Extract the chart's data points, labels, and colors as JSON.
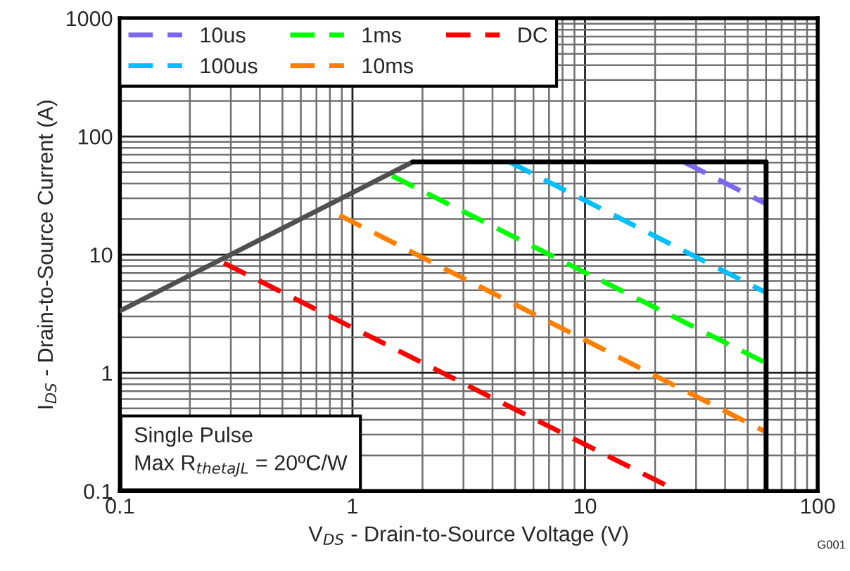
{
  "chart_data": {
    "type": "line",
    "xlabel": "V$_{DS}$ - Drain-to-Source Voltage (V)",
    "ylabel": "I$_{DS}$ - Drain-to-Source Current (A)",
    "log": "xy",
    "xlim": [
      0.1,
      100
    ],
    "ylim": [
      0.1,
      1000
    ],
    "xticks": [
      0.1,
      1,
      10,
      100
    ],
    "yticks": [
      0.1,
      1,
      10,
      100,
      1000
    ],
    "grid": true,
    "legend": "top left",
    "series": [
      {
        "name": "10us",
        "color": "#7b68ee",
        "line_style": "dashed",
        "x": [
          26.5,
          60
        ],
        "values": [
          61,
          26.9
        ]
      },
      {
        "name": "100us",
        "color": "#00bfff",
        "line_style": "dashed",
        "x": [
          4.72,
          60
        ],
        "values": [
          61,
          4.77
        ]
      },
      {
        "name": "1ms",
        "color": "#00ff00",
        "line_style": "dashed",
        "x": [
          1.48,
          60
        ],
        "values": [
          46.4,
          1.21
        ]
      },
      {
        "name": "10ms",
        "color": "#ff8000",
        "line_style": "dashed",
        "x": [
          0.88,
          60
        ],
        "values": [
          21.5,
          0.316
        ]
      },
      {
        "name": "DC",
        "color": "#ff0000",
        "line_style": "dashed",
        "x": [
          0.28,
          25
        ],
        "values": [
          8.5,
          0.1
        ]
      },
      {
        "color": "#505050",
        "line_style": "solid",
        "x": [
          0.1,
          1.82
        ],
        "values": [
          3.34,
          61
        ]
      },
      {
        "color": "#000000",
        "line_style": "solid",
        "x": [
          1.82,
          60,
          60
        ],
        "values": [
          61,
          61,
          0.1
        ]
      }
    ],
    "annotations": [
      "Single Pulse\nMax R$_{thetaJL}$ = 20ºC/W",
      "G001"
    ]
  }
}
